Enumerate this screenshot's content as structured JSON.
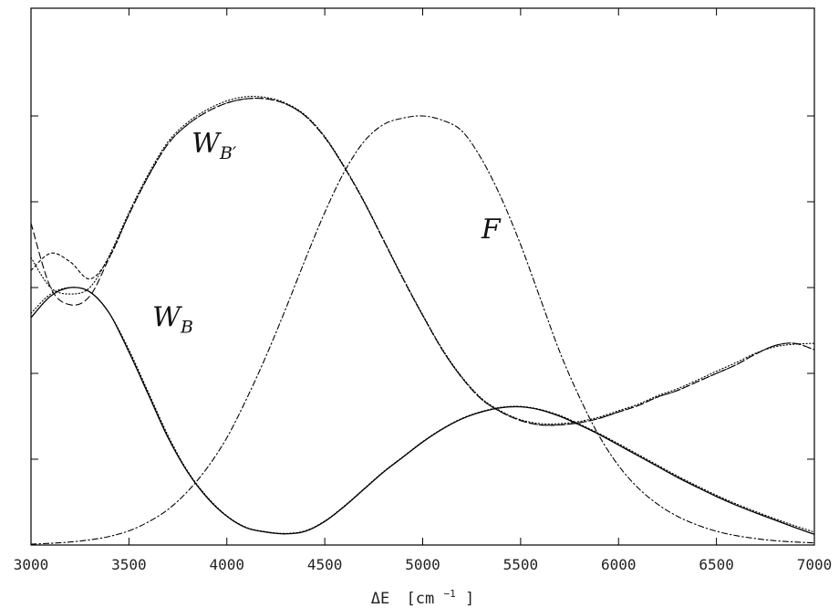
{
  "chart_data": {
    "type": "line",
    "title": "",
    "xlabel": "ΔE",
    "xlabel_unit": "[cm",
    "xlabel_unit_exp": "−1",
    "xlabel_unit_close": "]",
    "xlim": [
      3000,
      7000
    ],
    "ylim": [
      0,
      1
    ],
    "x_ticks": [
      3000,
      3500,
      4000,
      4500,
      5000,
      5500,
      6000,
      6500,
      7000
    ],
    "y_ticks": [
      0,
      0.2,
      0.4,
      0.6,
      0.8,
      1.0
    ],
    "y_tick_labels_shown": false,
    "grid": false,
    "legend": "none",
    "annotations": [
      {
        "text": "W",
        "subscript": "B′",
        "x": 3820,
        "y": 0.915,
        "series": "W_B'"
      },
      {
        "text": "W",
        "subscript": "B",
        "x": 3620,
        "y": 0.51,
        "series": "W_B"
      },
      {
        "text": "F",
        "subscript": "",
        "x": 5300,
        "y": 0.715,
        "series": "F"
      }
    ],
    "series": [
      {
        "style": "solid",
        "color": "#000000",
        "x": [
          3000,
          3100,
          3200,
          3300,
          3400,
          3500,
          3600,
          3700,
          3800,
          3900,
          4000,
          4100,
          4200,
          4300,
          4400,
          4500,
          4600,
          4700,
          4800,
          4900,
          5000,
          5100,
          5200,
          5300,
          5400,
          5500,
          5600,
          5700,
          5800,
          5900,
          6000,
          6100,
          6200,
          6300,
          6400,
          6500,
          6600,
          6700,
          6800,
          6900,
          7000
        ],
        "y": [
          0.53,
          0.58,
          0.6,
          0.59,
          0.54,
          0.45,
          0.35,
          0.25,
          0.17,
          0.11,
          0.067,
          0.04,
          0.03,
          0.026,
          0.032,
          0.055,
          0.09,
          0.13,
          0.17,
          0.205,
          0.24,
          0.27,
          0.294,
          0.31,
          0.32,
          0.322,
          0.315,
          0.3,
          0.28,
          0.258,
          0.233,
          0.208,
          0.183,
          0.158,
          0.135,
          0.113,
          0.093,
          0.075,
          0.058,
          0.041,
          0.025
        ]
      },
      {
        "style": "dotted",
        "color": "#000000",
        "x": [
          3000,
          3100,
          3200,
          3300,
          3400,
          3500,
          3600,
          3700,
          3800,
          3900,
          4000,
          4100,
          4200,
          4300,
          4400,
          4500,
          4600,
          4700,
          4800,
          4900,
          5000,
          5100,
          5200,
          5300,
          5400,
          5500,
          5600,
          5700,
          5800,
          5900,
          6000,
          6100,
          6200,
          6300,
          6400,
          6500,
          6600,
          6700,
          6800,
          6900,
          7000
        ],
        "y": [
          0.54,
          0.585,
          0.6,
          0.59,
          0.54,
          0.455,
          0.355,
          0.255,
          0.172,
          0.112,
          0.068,
          0.041,
          0.031,
          0.027,
          0.033,
          0.056,
          0.091,
          0.131,
          0.171,
          0.206,
          0.241,
          0.271,
          0.295,
          0.311,
          0.321,
          0.323,
          0.316,
          0.302,
          0.282,
          0.26,
          0.236,
          0.211,
          0.186,
          0.161,
          0.138,
          0.116,
          0.096,
          0.078,
          0.061,
          0.045,
          0.03
        ]
      },
      {
        "name": "W_B'",
        "style": "dashed",
        "color": "#000000",
        "x": [
          3000,
          3100,
          3200,
          3300,
          3400,
          3500,
          3600,
          3700,
          3800,
          3900,
          4000,
          4100,
          4200,
          4300,
          4400,
          4500,
          4600,
          4700,
          4800,
          4900,
          5000,
          5100,
          5200,
          5300,
          5400,
          5500,
          5600,
          5700,
          5800,
          5900,
          6000,
          6100,
          6200,
          6300,
          6400,
          6500,
          6600,
          6700,
          6800,
          6900,
          7000
        ],
        "y": [
          0.75,
          0.6,
          0.56,
          0.58,
          0.67,
          0.77,
          0.86,
          0.935,
          0.98,
          1.01,
          1.03,
          1.04,
          1.04,
          1.028,
          1.0,
          0.95,
          0.88,
          0.8,
          0.71,
          0.62,
          0.535,
          0.455,
          0.39,
          0.34,
          0.31,
          0.29,
          0.28,
          0.28,
          0.285,
          0.295,
          0.31,
          0.325,
          0.345,
          0.36,
          0.38,
          0.4,
          0.42,
          0.445,
          0.465,
          0.47,
          0.455
        ]
      },
      {
        "style": "fine-dashed",
        "color": "#000000",
        "x": [
          3000,
          3100,
          3200,
          3300,
          3400,
          3500,
          3600,
          3700,
          3800,
          3900,
          4000,
          4100,
          4200,
          4300,
          4400,
          4500,
          4600,
          4700,
          4800,
          4900,
          5000,
          5100,
          5200,
          5300,
          5400,
          5500,
          5600,
          5700,
          5800,
          5900,
          6000,
          6100,
          6200,
          6300,
          6400,
          6500,
          6600,
          6700,
          6800,
          6900,
          7000
        ],
        "y": [
          0.64,
          0.68,
          0.66,
          0.62,
          0.67,
          0.77,
          0.86,
          0.935,
          0.98,
          1.01,
          1.03,
          1.04,
          1.04,
          1.028,
          1.0,
          0.95,
          0.88,
          0.8,
          0.71,
          0.62,
          0.535,
          0.455,
          0.39,
          0.34,
          0.31,
          0.29,
          0.28,
          0.28,
          0.285,
          0.295,
          0.31,
          0.325,
          0.345,
          0.36,
          0.38,
          0.4,
          0.42,
          0.445,
          0.465,
          0.47,
          0.455
        ]
      },
      {
        "style": "dotted",
        "color": "#000000",
        "x": [
          3000,
          3100,
          3200,
          3300,
          3400,
          3500,
          3600,
          3700,
          3800,
          3900,
          4000,
          4100,
          4200,
          4300,
          4400,
          4500,
          4600,
          4700,
          4800,
          4900,
          5000,
          5100,
          5200,
          5300,
          5400,
          5500,
          5600,
          5700,
          5800,
          5900,
          6000,
          6100,
          6200,
          6300,
          6400,
          6500,
          6600,
          6700,
          6800,
          6900,
          7000
        ],
        "y": [
          0.67,
          0.6,
          0.585,
          0.6,
          0.675,
          0.775,
          0.865,
          0.94,
          0.985,
          1.015,
          1.035,
          1.045,
          1.043,
          1.03,
          1.002,
          0.952,
          0.882,
          0.802,
          0.712,
          0.622,
          0.537,
          0.457,
          0.392,
          0.342,
          0.312,
          0.292,
          0.283,
          0.283,
          0.288,
          0.298,
          0.313,
          0.328,
          0.348,
          0.364,
          0.384,
          0.405,
          0.425,
          0.447,
          0.462,
          0.468,
          0.47
        ]
      },
      {
        "name": "F",
        "style": "dash-dot",
        "color": "#000000",
        "x": [
          3000,
          3100,
          3200,
          3300,
          3400,
          3500,
          3600,
          3700,
          3800,
          3900,
          4000,
          4100,
          4200,
          4300,
          4400,
          4500,
          4600,
          4700,
          4800,
          4900,
          5000,
          5100,
          5200,
          5300,
          5400,
          5500,
          5600,
          5700,
          5800,
          5900,
          6000,
          6100,
          6200,
          6300,
          6400,
          6500,
          6600,
          6700,
          6800,
          6900,
          7000
        ],
        "y": [
          0.002,
          0.004,
          0.007,
          0.012,
          0.02,
          0.033,
          0.054,
          0.083,
          0.125,
          0.18,
          0.25,
          0.34,
          0.44,
          0.55,
          0.665,
          0.775,
          0.87,
          0.94,
          0.98,
          0.995,
          1.0,
          0.99,
          0.965,
          0.9,
          0.81,
          0.7,
          0.575,
          0.45,
          0.345,
          0.255,
          0.185,
          0.133,
          0.095,
          0.067,
          0.047,
          0.032,
          0.022,
          0.015,
          0.01,
          0.007,
          0.005
        ]
      }
    ]
  }
}
